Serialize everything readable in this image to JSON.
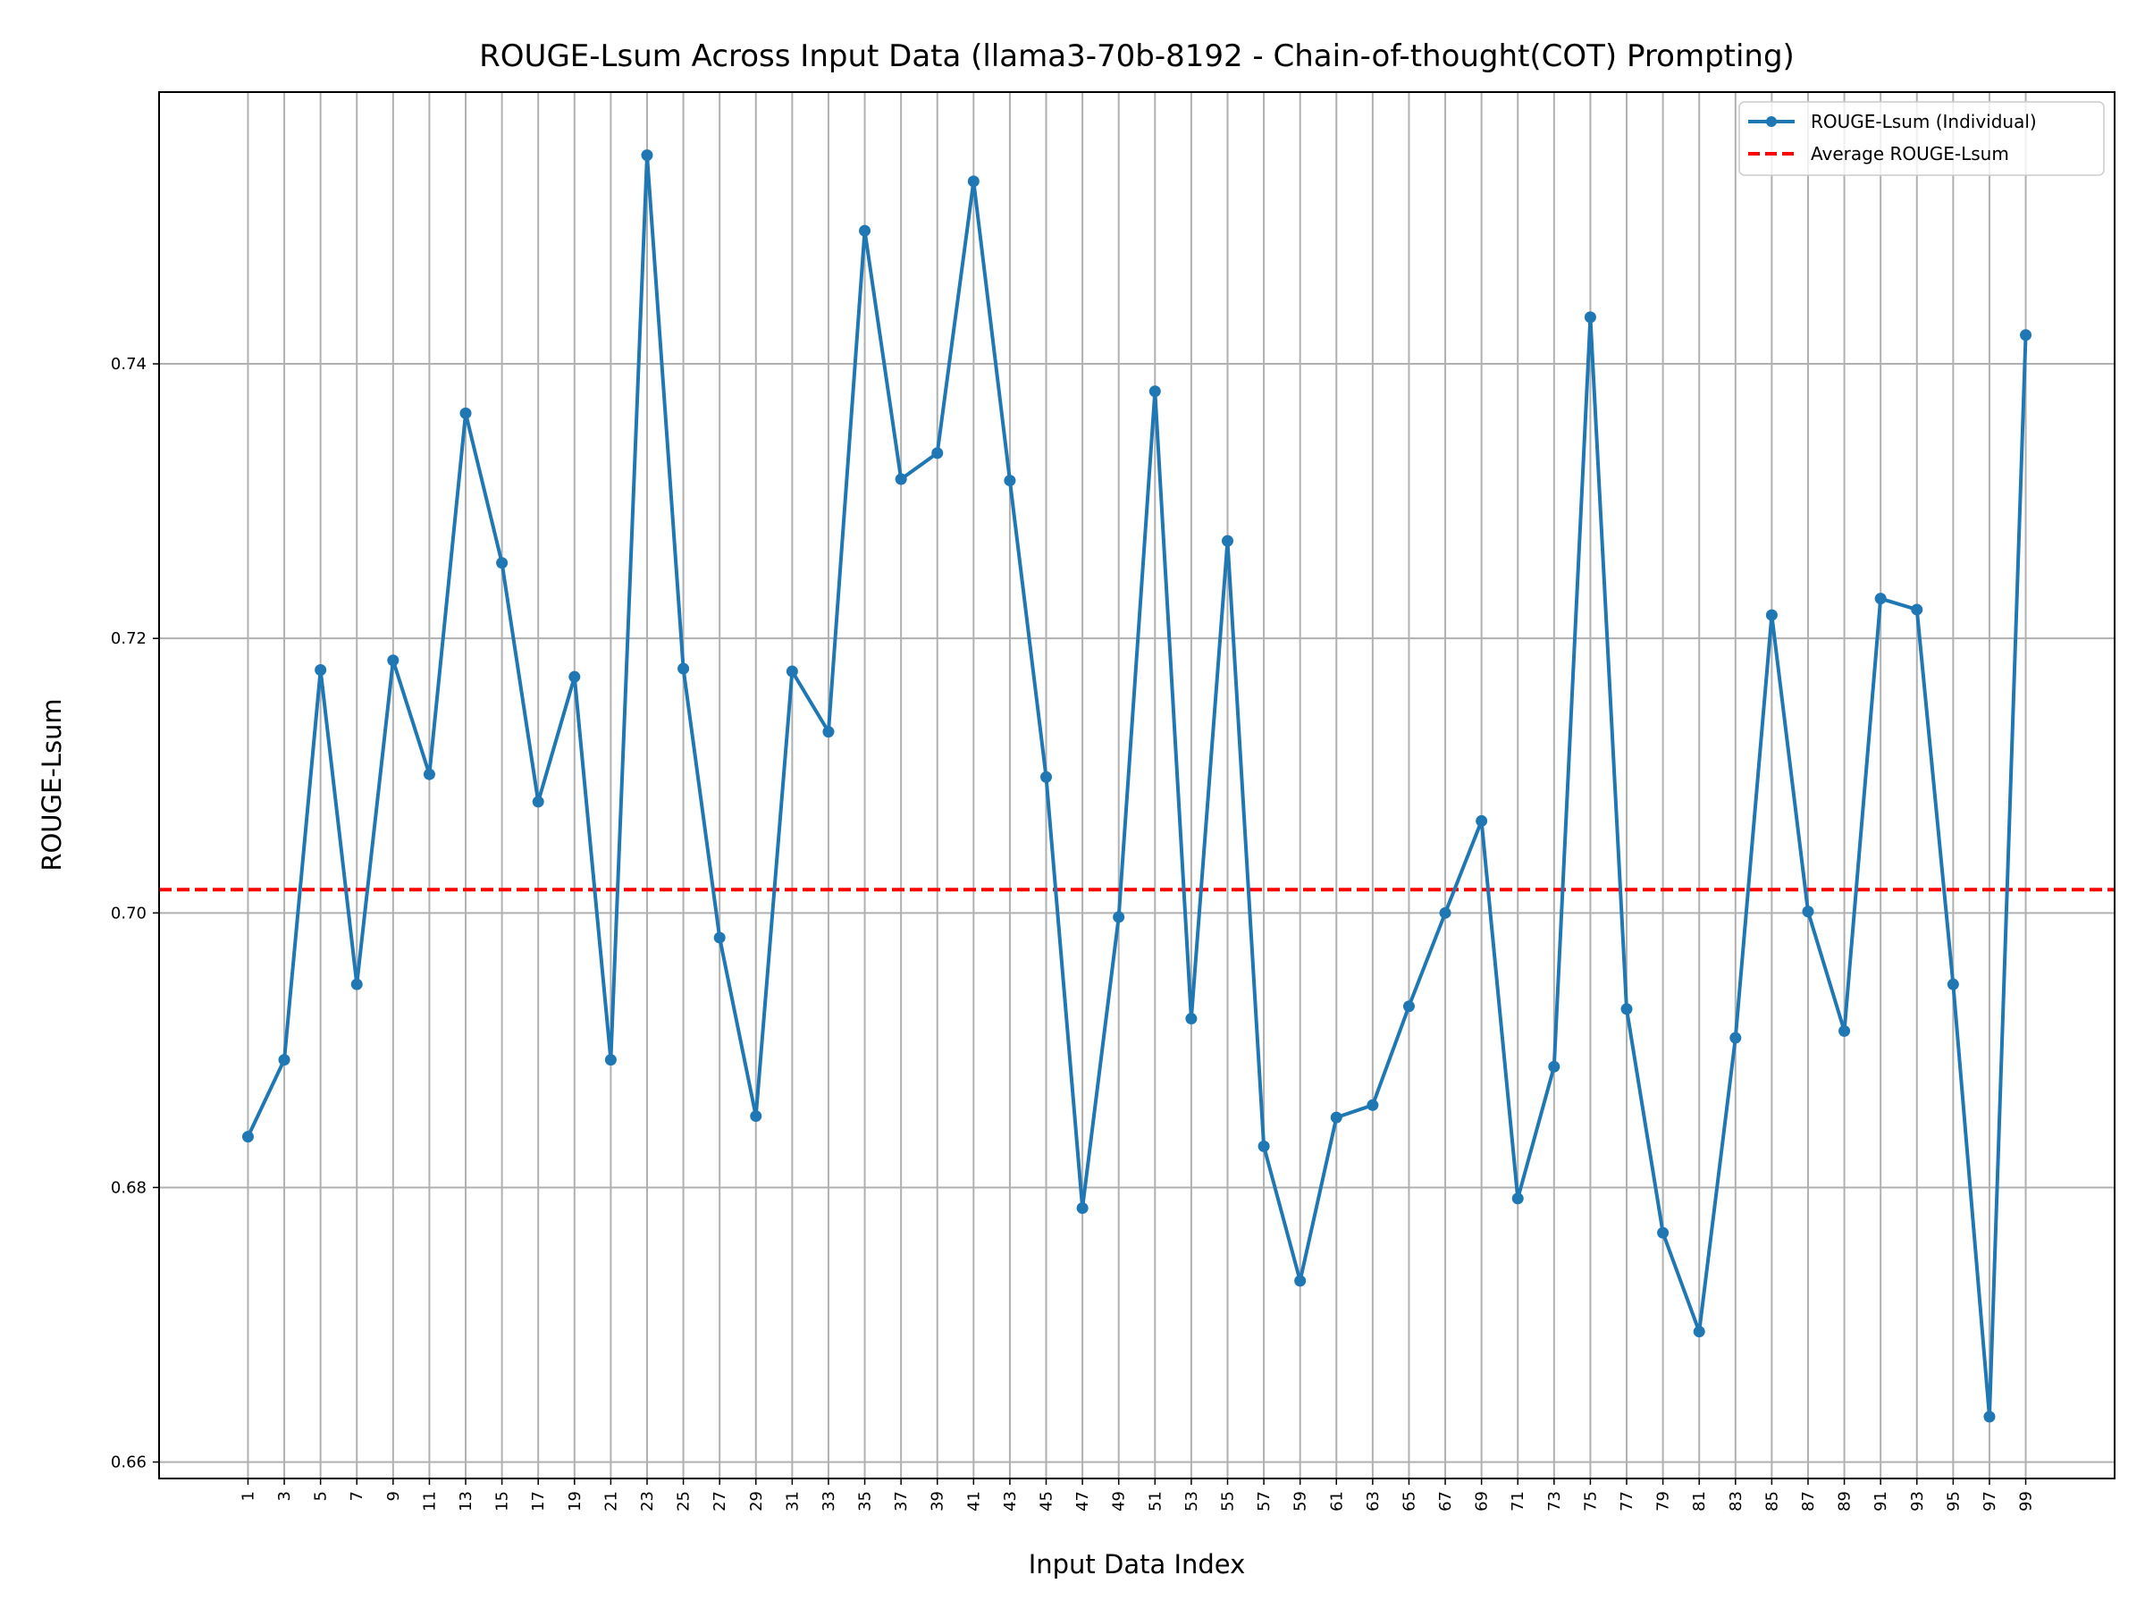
{
  "chart_data": {
    "type": "line",
    "title": "ROUGE-Lsum Across Input Data (llama3-70b-8192 - Chain-of-thought(COT) Prompting)",
    "xlabel": "Input Data Index",
    "ylabel": "ROUGE-Lsum",
    "x": [
      1,
      3,
      5,
      7,
      9,
      11,
      13,
      15,
      17,
      19,
      21,
      23,
      25,
      27,
      29,
      31,
      33,
      35,
      37,
      39,
      41,
      43,
      45,
      47,
      49,
      51,
      53,
      55,
      57,
      59,
      61,
      63,
      65,
      67,
      69,
      71,
      73,
      75,
      77,
      79,
      81,
      83,
      85,
      87,
      89,
      91,
      93,
      95,
      97,
      99
    ],
    "xticks": [
      1,
      3,
      5,
      7,
      9,
      11,
      13,
      15,
      17,
      19,
      21,
      23,
      25,
      27,
      29,
      31,
      33,
      35,
      37,
      39,
      41,
      43,
      45,
      47,
      49,
      51,
      53,
      55,
      57,
      59,
      61,
      63,
      65,
      67,
      69,
      71,
      73,
      75,
      77,
      79,
      81,
      83,
      85,
      87,
      89,
      91,
      93,
      95,
      97,
      99
    ],
    "xtick_labels": [
      "1",
      "3",
      "5",
      "7",
      "9",
      "11",
      "13",
      "15",
      "17",
      "19",
      "21",
      "23",
      "25",
      "27",
      "29",
      "31",
      "33",
      "35",
      "37",
      "39",
      "41",
      "43",
      "45",
      "47",
      "49",
      "51",
      "53",
      "55",
      "57",
      "59",
      "61",
      "63",
      "65",
      "67",
      "69",
      "71",
      "73",
      "75",
      "77",
      "79",
      "81",
      "83",
      "85",
      "87",
      "89",
      "91",
      "93",
      "95",
      "97",
      "99"
    ],
    "yticks": [
      0.66,
      0.68,
      0.7,
      0.72,
      0.74
    ],
    "ytick_labels": [
      "0.66",
      "0.68",
      "0.70",
      "0.72",
      "0.74"
    ],
    "xlim": [
      -3.9,
      103.9
    ],
    "ylim": [
      0.6588,
      0.7598
    ],
    "grid": true,
    "legend_position": "top-right",
    "series": [
      {
        "name": "ROUGE-Lsum (Individual)",
        "color": "#1f77b4",
        "style": "solid-with-markers",
        "values": [
          0.6837,
          0.6893,
          0.7177,
          0.6948,
          0.7184,
          0.7101,
          0.7364,
          0.7255,
          0.7081,
          0.7172,
          0.6893,
          0.7552,
          0.7178,
          0.6982,
          0.6852,
          0.7176,
          0.7132,
          0.7497,
          0.7316,
          0.7335,
          0.7533,
          0.7315,
          0.7099,
          0.6785,
          0.6997,
          0.738,
          0.6923,
          0.7271,
          0.683,
          0.6732,
          0.6851,
          0.686,
          0.6932,
          0.7,
          0.7067,
          0.6792,
          0.6888,
          0.7434,
          0.693,
          0.6767,
          0.6695,
          0.6909,
          0.7217,
          0.7001,
          0.6914,
          0.7229,
          0.7221,
          0.6948,
          0.6633,
          0.7421
        ]
      },
      {
        "name": "Average ROUGE-Lsum",
        "color": "#ff0000",
        "style": "dashed",
        "value": 0.7017
      }
    ]
  }
}
